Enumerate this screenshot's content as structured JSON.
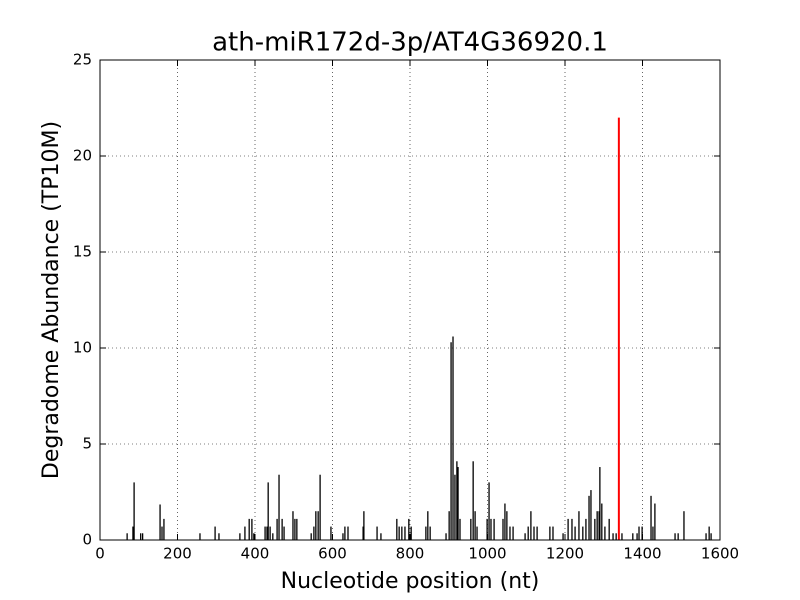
{
  "chart_data": {
    "type": "bar",
    "title": "ath-miR172d-3p/AT4G36920.1",
    "x_label": "Nucleotide position (nt)",
    "y_label": "Degradome Abundance (TP10M)",
    "xlim": [
      0,
      1600
    ],
    "xticks": [
      0,
      200,
      400,
      600,
      800,
      1000,
      1200,
      1400,
      1600
    ],
    "ylim": [
      0,
      25
    ],
    "yticks": [
      0,
      5,
      10,
      15,
      20,
      25
    ],
    "grid": true,
    "series": [
      {
        "color": "#000000",
        "x": [
          70,
          85,
          88,
          105,
          110,
          155,
          160,
          165,
          258,
          297,
          307,
          361,
          374,
          385,
          392,
          397,
          426,
          431,
          434,
          439,
          446,
          457,
          462,
          470,
          475,
          498,
          503,
          508,
          545,
          552,
          557,
          563,
          568,
          596,
          627,
          632,
          640,
          679,
          681,
          715,
          725,
          766,
          772,
          779,
          787,
          797,
          803,
          841,
          846,
          852,
          893,
          901,
          906,
          911,
          916,
          921,
          924,
          929,
          957,
          963,
          968,
          973,
          999,
          1004,
          1009,
          1017,
          1040,
          1045,
          1050,
          1058,
          1066,
          1097,
          1105,
          1112,
          1120,
          1128,
          1161,
          1169,
          1195,
          1208,
          1218,
          1226,
          1236,
          1246,
          1254,
          1262,
          1267,
          1277,
          1283,
          1288,
          1290,
          1295,
          1303,
          1314,
          1324,
          1332,
          1347,
          1375,
          1386,
          1391,
          1399,
          1422,
          1427,
          1432,
          1484,
          1492,
          1507,
          1564,
          1572,
          1577
        ],
        "values": [
          0.35,
          0.7,
          3.0,
          0.35,
          0.35,
          1.85,
          0.7,
          1.1,
          0.35,
          0.7,
          0.35,
          0.35,
          0.7,
          1.1,
          1.1,
          0.35,
          0.7,
          0.7,
          3.0,
          0.7,
          0.35,
          1.1,
          3.4,
          1.1,
          0.7,
          1.5,
          1.1,
          1.1,
          0.35,
          0.7,
          1.5,
          1.5,
          3.4,
          0.7,
          0.35,
          0.7,
          0.7,
          0.7,
          1.5,
          0.7,
          0.35,
          1.1,
          0.7,
          0.7,
          0.7,
          1.1,
          0.7,
          0.7,
          1.5,
          0.7,
          0.35,
          1.5,
          10.3,
          10.6,
          3.4,
          4.1,
          3.8,
          1.1,
          1.1,
          4.1,
          1.5,
          0.7,
          1.1,
          3.0,
          1.1,
          1.1,
          1.1,
          1.9,
          1.5,
          0.7,
          0.7,
          0.35,
          0.7,
          1.5,
          0.7,
          0.7,
          0.7,
          0.7,
          0.35,
          1.1,
          1.1,
          0.7,
          1.5,
          0.7,
          1.1,
          2.3,
          2.6,
          1.1,
          1.5,
          1.5,
          3.8,
          1.9,
          0.7,
          1.1,
          0.35,
          0.35,
          0.35,
          0.35,
          0.35,
          0.7,
          0.7,
          2.3,
          0.7,
          1.9,
          0.35,
          0.35,
          1.5,
          0.35,
          0.7,
          0.35
        ]
      },
      {
        "color": "#ff0000",
        "x": [
          1339
        ],
        "values": [
          22.0
        ]
      }
    ]
  }
}
